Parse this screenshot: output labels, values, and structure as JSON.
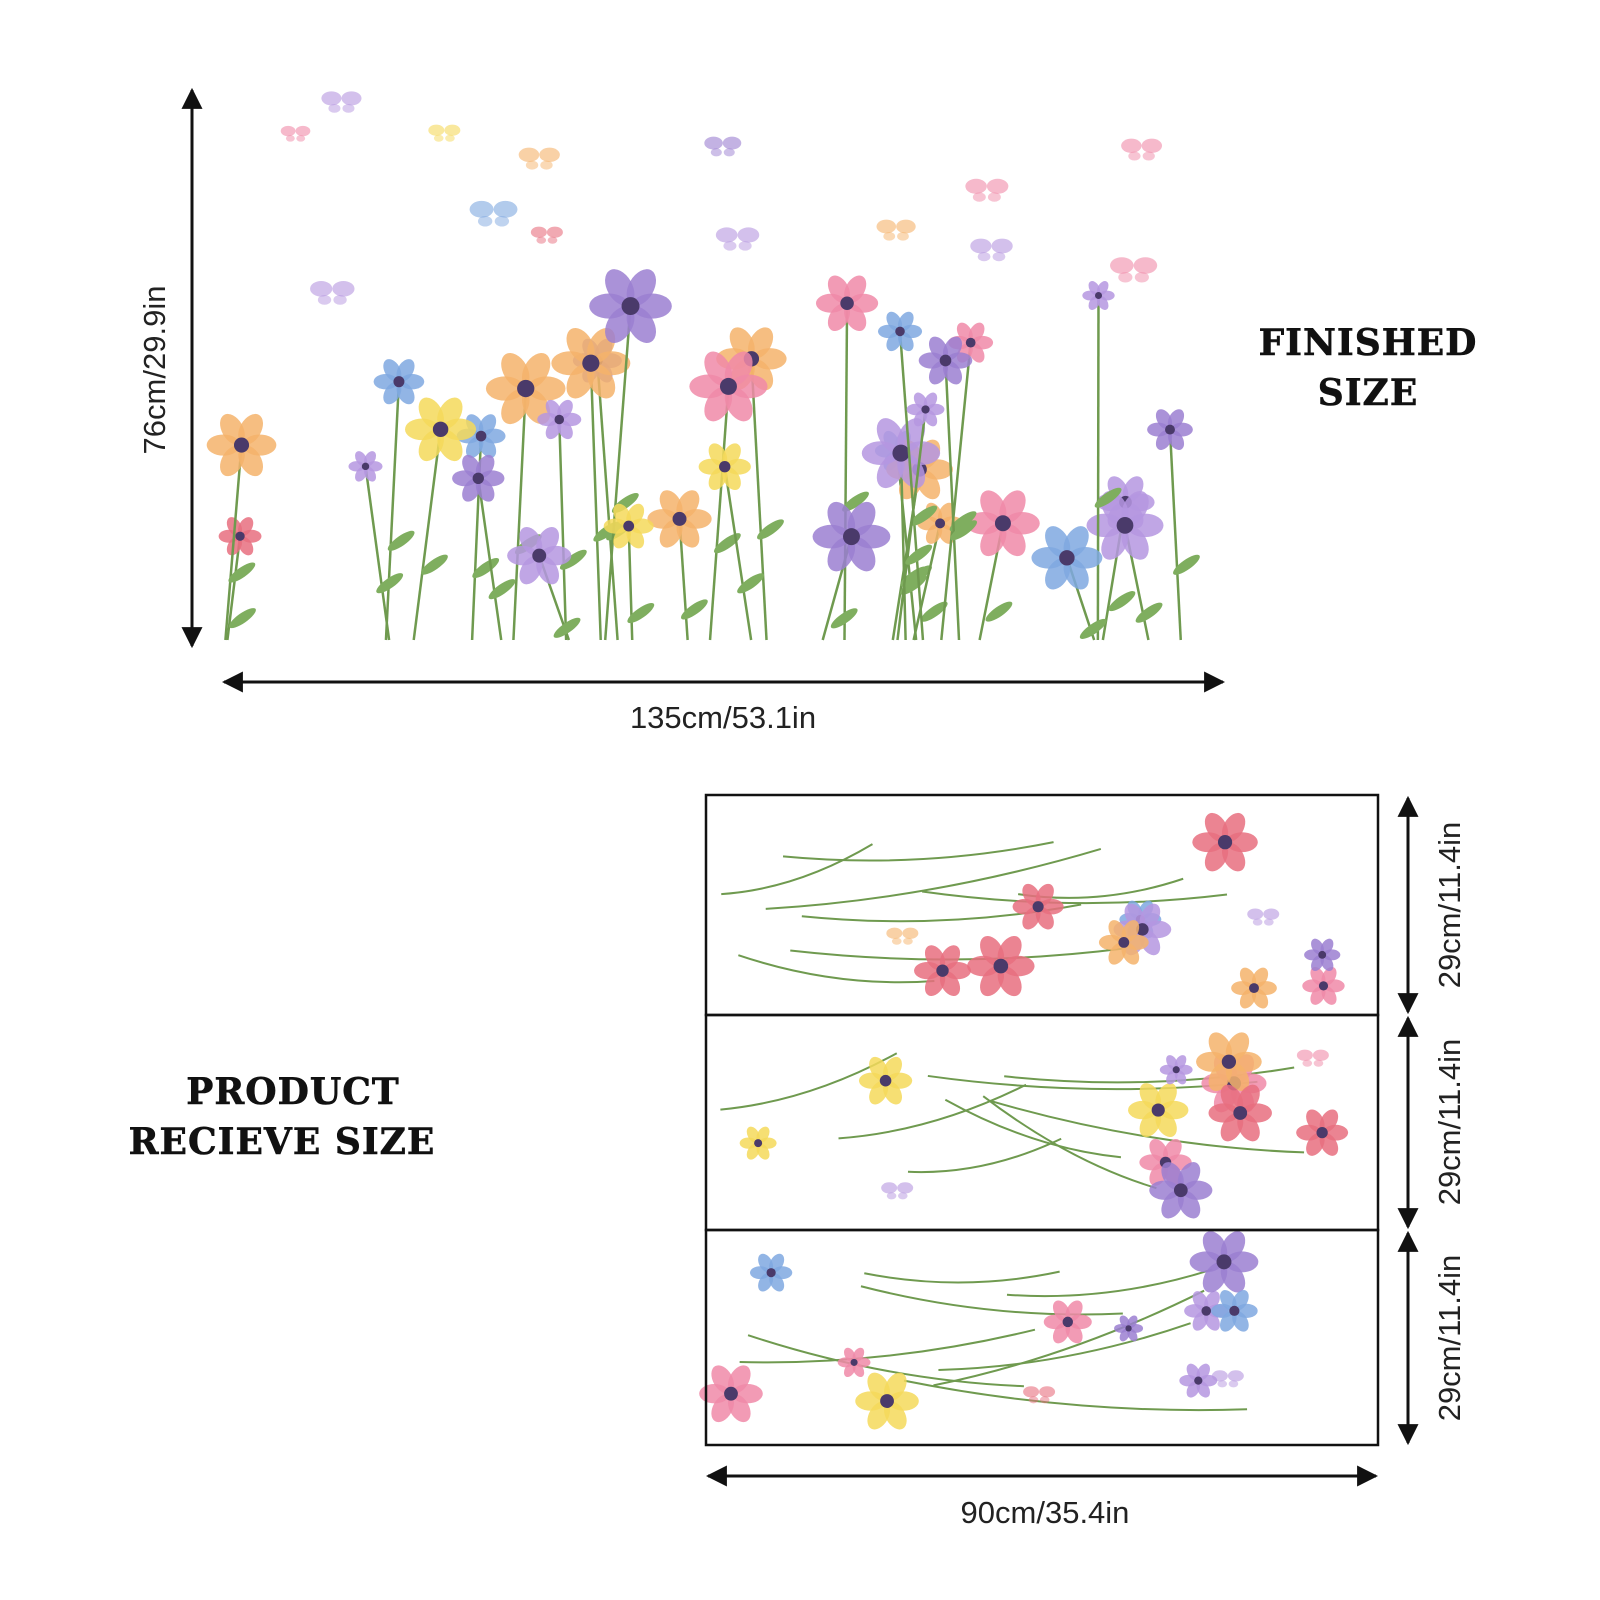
{
  "finished": {
    "height_label": "76cm/29.9in",
    "width_label": "135cm/53.1in",
    "title": [
      "FINISHED",
      "SIZE"
    ]
  },
  "product": {
    "title": [
      "PRODUCT",
      "RECIEVE SIZE"
    ],
    "sheet_height_labels": [
      "29cm/11.4in",
      "29cm/11.4in",
      "29cm/11.4in"
    ],
    "width_label": "90cm/35.4in"
  }
}
